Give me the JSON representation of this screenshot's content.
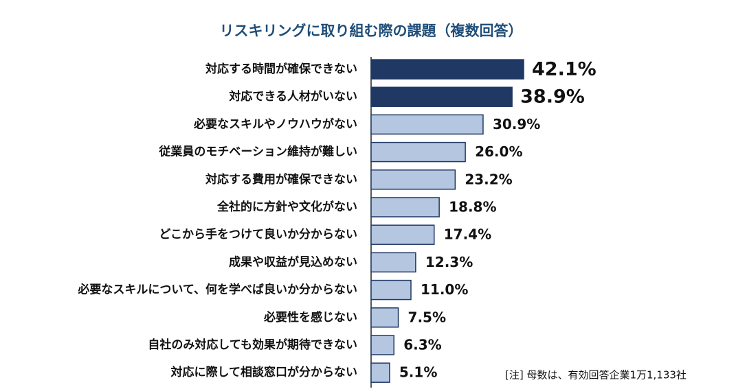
{
  "chart_data": {
    "type": "bar",
    "orientation": "horizontal",
    "title": "リスキリングに取り組む際の課題（複数回答）",
    "categories": [
      "対応する時間が確保できない",
      "対応できる人材がいない",
      "必要なスキルやノウハウがない",
      "従業員のモチベーション維持が難しい",
      "対応する費用が確保できない",
      "全社的に方針や文化がない",
      "どこから手をつけて良いか分からない",
      "成果や収益が見込めない",
      "必要なスキルについて、何を学べば良いか分からない",
      "必要性を感じない",
      "自社のみ対応しても効果が期待できない",
      "対応に際して相談窓口が分からない"
    ],
    "values": [
      42.1,
      38.9,
      30.9,
      26.0,
      23.2,
      18.8,
      17.4,
      12.3,
      11.0,
      7.5,
      6.3,
      5.1
    ],
    "value_labels": [
      "42.1%",
      "38.9%",
      "30.9%",
      "26.0%",
      "23.2%",
      "18.8%",
      "17.4%",
      "12.3%",
      "11.0%",
      "7.5%",
      "6.3%",
      "5.1%"
    ],
    "colors": [
      "#1f3864",
      "#1f3864",
      "#b4c6e0",
      "#b4c6e0",
      "#b4c6e0",
      "#b4c6e0",
      "#b4c6e0",
      "#b4c6e0",
      "#b4c6e0",
      "#b4c6e0",
      "#b4c6e0",
      "#b4c6e0"
    ],
    "annotation": "[注] 母数は、有効回答企業1万1,133社"
  }
}
